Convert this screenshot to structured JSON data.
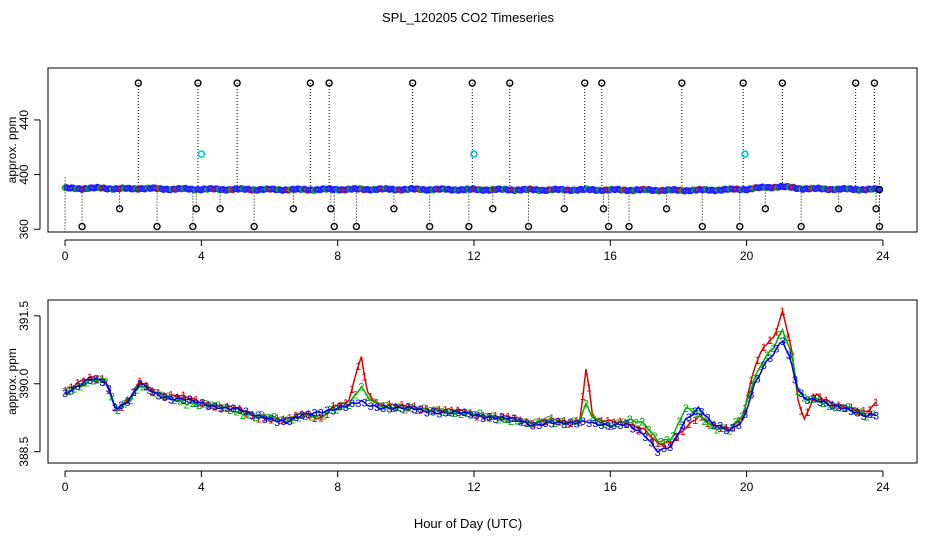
{
  "title": "SPL_120205  CO2 Timeseries",
  "xlabel": "Hour of Day (UTC)",
  "colors": {
    "series1": "#e00000",
    "series2": "#00b000",
    "series3": "#0000e0",
    "flagged": "#000000",
    "cal": "#00c8dc",
    "blue_dots": "#2020ff"
  },
  "chart_data": [
    {
      "type": "scatter",
      "name": "top-panel",
      "ylabel": "approx. ppm",
      "xlim": [
        -0.5,
        25
      ],
      "ylim": [
        358,
        478
      ],
      "xticks": [
        "0",
        "4",
        "8",
        "12",
        "16",
        "20",
        "24"
      ],
      "yticks": [
        "360",
        "400",
        "440"
      ],
      "ytick_values": [
        360,
        400,
        440
      ],
      "baseline": [
        [
          0,
          389.9
        ],
        [
          0.5,
          389.9
        ],
        [
          1,
          390.1
        ],
        [
          1.5,
          389.7
        ],
        [
          2,
          389.6
        ],
        [
          2.2,
          390.0
        ],
        [
          3,
          389.5
        ],
        [
          4,
          389.3
        ],
        [
          5,
          389.2
        ],
        [
          6,
          389.1
        ],
        [
          7,
          389.0
        ],
        [
          8,
          389.2
        ],
        [
          9,
          389.3
        ],
        [
          10,
          389.2
        ],
        [
          11,
          389.1
        ],
        [
          12,
          389.0
        ],
        [
          13,
          389.0
        ],
        [
          14,
          388.8
        ],
        [
          15,
          388.9
        ],
        [
          16,
          388.8
        ],
        [
          17,
          388.7
        ],
        [
          18,
          388.5
        ],
        [
          19,
          388.8
        ],
        [
          20,
          389.4
        ],
        [
          20.5,
          390.5
        ],
        [
          21,
          391.2
        ],
        [
          21.5,
          390.0
        ],
        [
          22,
          389.6
        ],
        [
          23,
          389.3
        ],
        [
          23.8,
          389.1
        ]
      ],
      "high_flags": [
        2.15,
        3.9,
        5.05,
        7.2,
        7.75,
        10.2,
        11.95,
        13.05,
        15.25,
        15.75,
        18.1,
        19.9,
        21.05,
        23.2,
        23.75
      ],
      "high_flag_value": 467,
      "low_flags": [
        0.5,
        1.6,
        2.7,
        3.75,
        3.85,
        4.55,
        5.55,
        6.7,
        7.8,
        7.9,
        8.55,
        9.65,
        10.7,
        11.85,
        12.55,
        13.6,
        14.65,
        15.8,
        15.95,
        16.55,
        17.65,
        18.7,
        19.8,
        20.55,
        21.6,
        22.7,
        23.8,
        23.9
      ],
      "low_flag_values": [
        362,
        375,
        362,
        362,
        375,
        375,
        362,
        375,
        375,
        362,
        362,
        375,
        362,
        362,
        375,
        362,
        375,
        375,
        362,
        362,
        375,
        362,
        362,
        375,
        362,
        375,
        375,
        362
      ],
      "cal_points": [
        [
          4.0,
          415.0
        ],
        [
          12.0,
          415.0
        ],
        [
          19.95,
          415.0
        ]
      ]
    },
    {
      "type": "line",
      "name": "bottom-panel",
      "ylabel": "approx. ppm",
      "xlim": [
        -0.5,
        25
      ],
      "ylim": [
        388.25,
        391.85
      ],
      "xticks": [
        "0",
        "4",
        "8",
        "12",
        "16",
        "20",
        "24"
      ],
      "yticks": [
        "388.5",
        "390.0",
        "391.5"
      ],
      "ytick_values": [
        388.5,
        390.0,
        391.5
      ],
      "series": [
        {
          "name": "1",
          "color": "#e00000",
          "points": [
            [
              0,
              389.85
            ],
            [
              0.4,
              390.0
            ],
            [
              0.8,
              390.15
            ],
            [
              1.2,
              390.1
            ],
            [
              1.5,
              389.4
            ],
            [
              1.9,
              389.65
            ],
            [
              2.2,
              390.05
            ],
            [
              2.6,
              389.85
            ],
            [
              3,
              389.75
            ],
            [
              3.5,
              389.7
            ],
            [
              4,
              389.6
            ],
            [
              4.5,
              389.5
            ],
            [
              5,
              389.45
            ],
            [
              5.5,
              389.3
            ],
            [
              6,
              389.25
            ],
            [
              6.5,
              389.2
            ],
            [
              7,
              389.35
            ],
            [
              7.5,
              389.25
            ],
            [
              7.9,
              389.5
            ],
            [
              8.3,
              389.55
            ],
            [
              8.7,
              390.65
            ],
            [
              8.85,
              389.85
            ],
            [
              9.2,
              389.55
            ],
            [
              9.7,
              389.5
            ],
            [
              10.2,
              389.5
            ],
            [
              10.7,
              389.45
            ],
            [
              11.2,
              389.4
            ],
            [
              11.7,
              389.4
            ],
            [
              12.2,
              389.3
            ],
            [
              12.7,
              389.25
            ],
            [
              13.2,
              389.25
            ],
            [
              13.7,
              389.15
            ],
            [
              14.2,
              389.2
            ],
            [
              14.7,
              389.15
            ],
            [
              15.1,
              389.2
            ],
            [
              15.3,
              390.4
            ],
            [
              15.5,
              389.2
            ],
            [
              16.0,
              389.15
            ],
            [
              16.5,
              389.15
            ],
            [
              17.0,
              389.0
            ],
            [
              17.4,
              388.65
            ],
            [
              17.8,
              388.7
            ],
            [
              18.2,
              389.05
            ],
            [
              18.6,
              389.3
            ],
            [
              19.0,
              389.05
            ],
            [
              19.5,
              389.0
            ],
            [
              19.9,
              389.3
            ],
            [
              20.2,
              390.3
            ],
            [
              20.5,
              390.8
            ],
            [
              20.8,
              391.0
            ],
            [
              21.05,
              391.6
            ],
            [
              21.3,
              390.9
            ],
            [
              21.5,
              389.7
            ],
            [
              21.7,
              389.2
            ],
            [
              22.0,
              389.75
            ],
            [
              22.5,
              389.55
            ],
            [
              23.0,
              389.5
            ],
            [
              23.5,
              389.35
            ],
            [
              23.8,
              389.55
            ]
          ]
        },
        {
          "name": "2",
          "color": "#00b000",
          "points": [
            [
              0,
              389.8
            ],
            [
              0.4,
              389.95
            ],
            [
              0.8,
              390.1
            ],
            [
              1.2,
              390.05
            ],
            [
              1.5,
              389.4
            ],
            [
              1.9,
              389.65
            ],
            [
              2.2,
              390.0
            ],
            [
              2.6,
              389.8
            ],
            [
              3,
              389.7
            ],
            [
              3.5,
              389.6
            ],
            [
              4,
              389.55
            ],
            [
              4.5,
              389.5
            ],
            [
              5,
              389.4
            ],
            [
              5.5,
              389.3
            ],
            [
              6,
              389.25
            ],
            [
              6.5,
              389.2
            ],
            [
              7,
              389.3
            ],
            [
              7.5,
              389.25
            ],
            [
              7.9,
              389.45
            ],
            [
              8.3,
              389.55
            ],
            [
              8.7,
              389.95
            ],
            [
              8.85,
              389.7
            ],
            [
              9.2,
              389.5
            ],
            [
              9.7,
              389.5
            ],
            [
              10.2,
              389.45
            ],
            [
              10.7,
              389.4
            ],
            [
              11.2,
              389.4
            ],
            [
              11.7,
              389.35
            ],
            [
              12.2,
              389.3
            ],
            [
              12.7,
              389.25
            ],
            [
              13.2,
              389.2
            ],
            [
              13.7,
              389.1
            ],
            [
              14.2,
              389.2
            ],
            [
              14.7,
              389.15
            ],
            [
              15.1,
              389.15
            ],
            [
              15.3,
              389.55
            ],
            [
              15.5,
              389.2
            ],
            [
              16.0,
              389.1
            ],
            [
              16.5,
              389.2
            ],
            [
              17.0,
              389.1
            ],
            [
              17.4,
              388.75
            ],
            [
              17.8,
              388.8
            ],
            [
              18.2,
              389.45
            ],
            [
              18.6,
              389.3
            ],
            [
              19.0,
              389.05
            ],
            [
              19.5,
              389.0
            ],
            [
              19.9,
              389.3
            ],
            [
              20.2,
              390.05
            ],
            [
              20.5,
              390.55
            ],
            [
              20.8,
              390.85
            ],
            [
              21.05,
              391.2
            ],
            [
              21.3,
              390.7
            ],
            [
              21.5,
              389.85
            ],
            [
              21.7,
              389.65
            ],
            [
              22.0,
              389.7
            ],
            [
              22.5,
              389.5
            ],
            [
              23.0,
              389.45
            ],
            [
              23.5,
              389.3
            ],
            [
              23.8,
              389.35
            ]
          ]
        },
        {
          "name": "3",
          "color": "#0000e0",
          "points": [
            [
              0,
              389.8
            ],
            [
              0.4,
              389.95
            ],
            [
              0.8,
              390.1
            ],
            [
              1.2,
              390.05
            ],
            [
              1.5,
              389.45
            ],
            [
              1.9,
              389.65
            ],
            [
              2.2,
              390.0
            ],
            [
              2.6,
              389.8
            ],
            [
              3,
              389.7
            ],
            [
              3.5,
              389.65
            ],
            [
              4,
              389.55
            ],
            [
              4.5,
              389.5
            ],
            [
              5,
              389.45
            ],
            [
              5.5,
              389.3
            ],
            [
              6,
              389.25
            ],
            [
              6.5,
              389.15
            ],
            [
              7,
              389.3
            ],
            [
              7.5,
              389.4
            ],
            [
              7.9,
              389.45
            ],
            [
              8.3,
              389.5
            ],
            [
              8.7,
              389.6
            ],
            [
              8.85,
              389.55
            ],
            [
              9.2,
              389.5
            ],
            [
              9.7,
              389.45
            ],
            [
              10.2,
              389.45
            ],
            [
              10.7,
              389.4
            ],
            [
              11.2,
              389.35
            ],
            [
              11.7,
              389.35
            ],
            [
              12.2,
              389.3
            ],
            [
              12.7,
              389.25
            ],
            [
              13.2,
              389.2
            ],
            [
              13.7,
              389.1
            ],
            [
              14.2,
              389.15
            ],
            [
              14.7,
              389.1
            ],
            [
              15.1,
              389.15
            ],
            [
              15.3,
              389.2
            ],
            [
              15.5,
              389.15
            ],
            [
              16.0,
              389.05
            ],
            [
              16.5,
              389.1
            ],
            [
              17.0,
              388.9
            ],
            [
              17.4,
              388.5
            ],
            [
              17.8,
              388.6
            ],
            [
              18.2,
              389.2
            ],
            [
              18.6,
              389.5
            ],
            [
              19.0,
              389.1
            ],
            [
              19.5,
              388.95
            ],
            [
              19.9,
              389.2
            ],
            [
              20.2,
              389.95
            ],
            [
              20.5,
              390.4
            ],
            [
              20.8,
              390.65
            ],
            [
              21.05,
              390.95
            ],
            [
              21.3,
              390.5
            ],
            [
              21.5,
              389.9
            ],
            [
              21.7,
              389.7
            ],
            [
              22.0,
              389.65
            ],
            [
              22.5,
              389.5
            ],
            [
              23.0,
              389.45
            ],
            [
              23.5,
              389.3
            ],
            [
              23.8,
              389.3
            ]
          ]
        }
      ]
    }
  ]
}
